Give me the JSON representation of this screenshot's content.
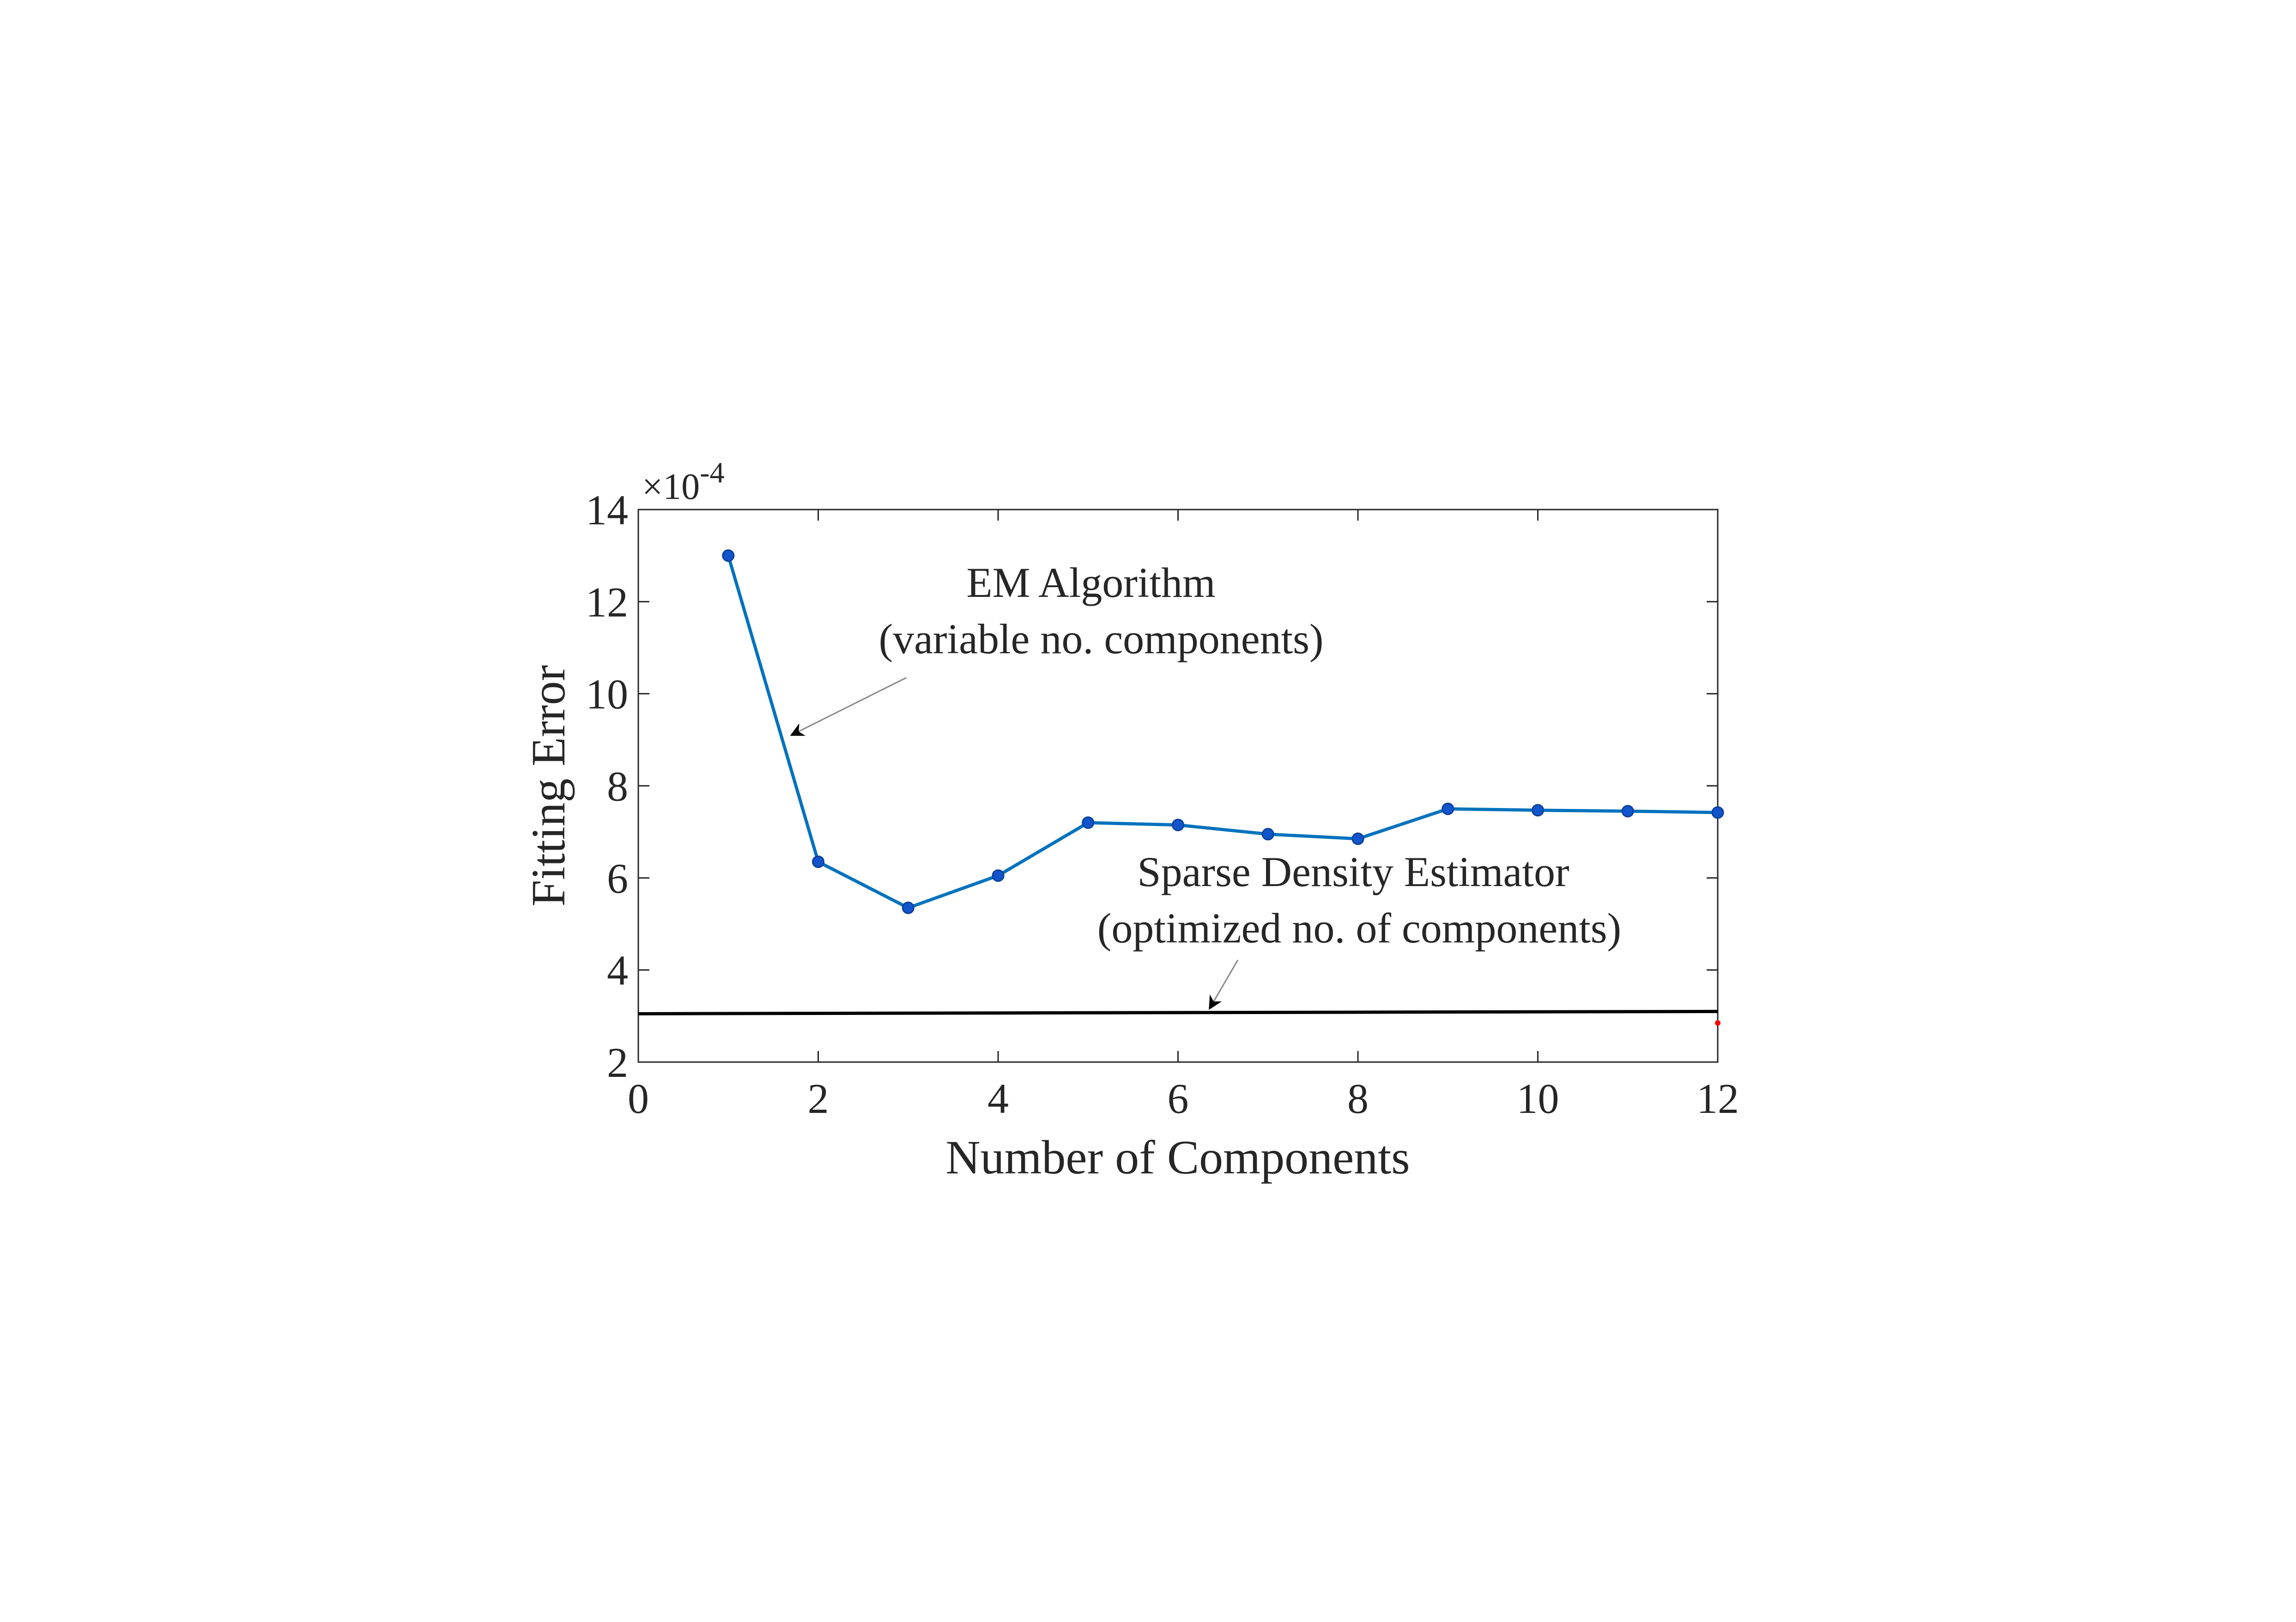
{
  "chart_data": {
    "type": "line",
    "xlabel": "Number of Components",
    "ylabel": "Fitting Error",
    "y_exponent": "×10",
    "y_exponent_power": "-4",
    "xlim": [
      0,
      12
    ],
    "ylim": [
      2,
      14
    ],
    "xticks": [
      "0",
      "2",
      "4",
      "6",
      "8",
      "10",
      "12"
    ],
    "yticks": [
      "2",
      "4",
      "6",
      "8",
      "10",
      "12",
      "14"
    ],
    "grid": false,
    "series": [
      {
        "color": "#0072BD",
        "marker_color": "#1155CC",
        "x": [
          1,
          2,
          3,
          4,
          5,
          6,
          7,
          8,
          9,
          10,
          11,
          12
        ],
        "y": [
          13.0,
          6.35,
          5.35,
          6.05,
          7.2,
          7.15,
          6.95,
          6.85,
          7.5,
          7.47,
          7.45,
          7.42
        ]
      },
      {
        "color": "#000000",
        "x": [
          0,
          12
        ],
        "y": [
          3.05,
          3.1
        ]
      },
      {
        "color": "#FF0000",
        "x": [
          12
        ],
        "y": [
          2.85
        ]
      }
    ],
    "annotations": [
      {
        "line1": "EM Algorithm",
        "line2": "(variable no. components)",
        "arrow_to": [
          1.7,
          9.1
        ]
      },
      {
        "line1": "Sparse Density Estimator",
        "line2": "(optimized no. of components)",
        "arrow_to": [
          6.35,
          3.1
        ]
      }
    ]
  }
}
